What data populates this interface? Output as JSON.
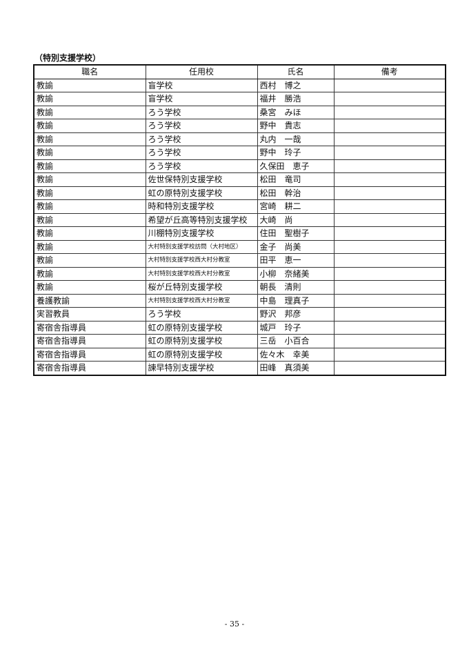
{
  "section_title": "（特別支援学校）",
  "table": {
    "headers": [
      "職名",
      "任用校",
      "氏名",
      "備考"
    ],
    "rows": [
      [
        "教諭",
        "盲学校",
        "西村　博之",
        ""
      ],
      [
        "教諭",
        "盲学校",
        "福井　勝浩",
        ""
      ],
      [
        "教諭",
        "ろう学校",
        "桑宮　みほ",
        ""
      ],
      [
        "教諭",
        "ろう学校",
        "野中　貴志",
        ""
      ],
      [
        "教諭",
        "ろう学校",
        "丸内　一哉",
        ""
      ],
      [
        "教諭",
        "ろう学校",
        "野中　玲子",
        ""
      ],
      [
        "教諭",
        "ろう学校",
        "久保田　恵子",
        ""
      ],
      [
        "教諭",
        "佐世保特別支援学校",
        "松田　竜司",
        ""
      ],
      [
        "教諭",
        "虹の原特別支援学校",
        "松田　幹治",
        ""
      ],
      [
        "教諭",
        "時和特別支援学校",
        "宮崎　耕二",
        ""
      ],
      [
        "教諭",
        "希望が丘高等特別支援学校",
        "大崎　尚",
        ""
      ],
      [
        "教諭",
        "川棚特別支援学校",
        "住田　聖樹子",
        ""
      ],
      [
        "教諭",
        "大村特別支援学校訪問（大村地区）",
        "金子　尚美",
        ""
      ],
      [
        "教諭",
        "大村特別支援学校西大村分教室",
        "田平　恵一",
        ""
      ],
      [
        "教諭",
        "大村特別支援学校西大村分教室",
        "小柳　奈緒美",
        ""
      ],
      [
        "教諭",
        "桜が丘特別支援学校",
        "朝長　清則",
        ""
      ],
      [
        "養護教諭",
        "大村特別支援学校西大村分教室",
        "中島　理真子",
        ""
      ],
      [
        "実習教員",
        "ろう学校",
        "野沢　邦彦",
        ""
      ],
      [
        "寄宿舎指導員",
        "虹の原特別支援学校",
        "城戸　玲子",
        ""
      ],
      [
        "寄宿舎指導員",
        "虹の原特別支援学校",
        "三岳　小百合",
        ""
      ],
      [
        "寄宿舎指導員",
        "虹の原特別支援学校",
        "佐々木　幸美",
        ""
      ],
      [
        "寄宿舎指導員",
        "諫早特別支援学校",
        "田峰　真須美",
        ""
      ]
    ]
  },
  "page_number": "- 35 -"
}
